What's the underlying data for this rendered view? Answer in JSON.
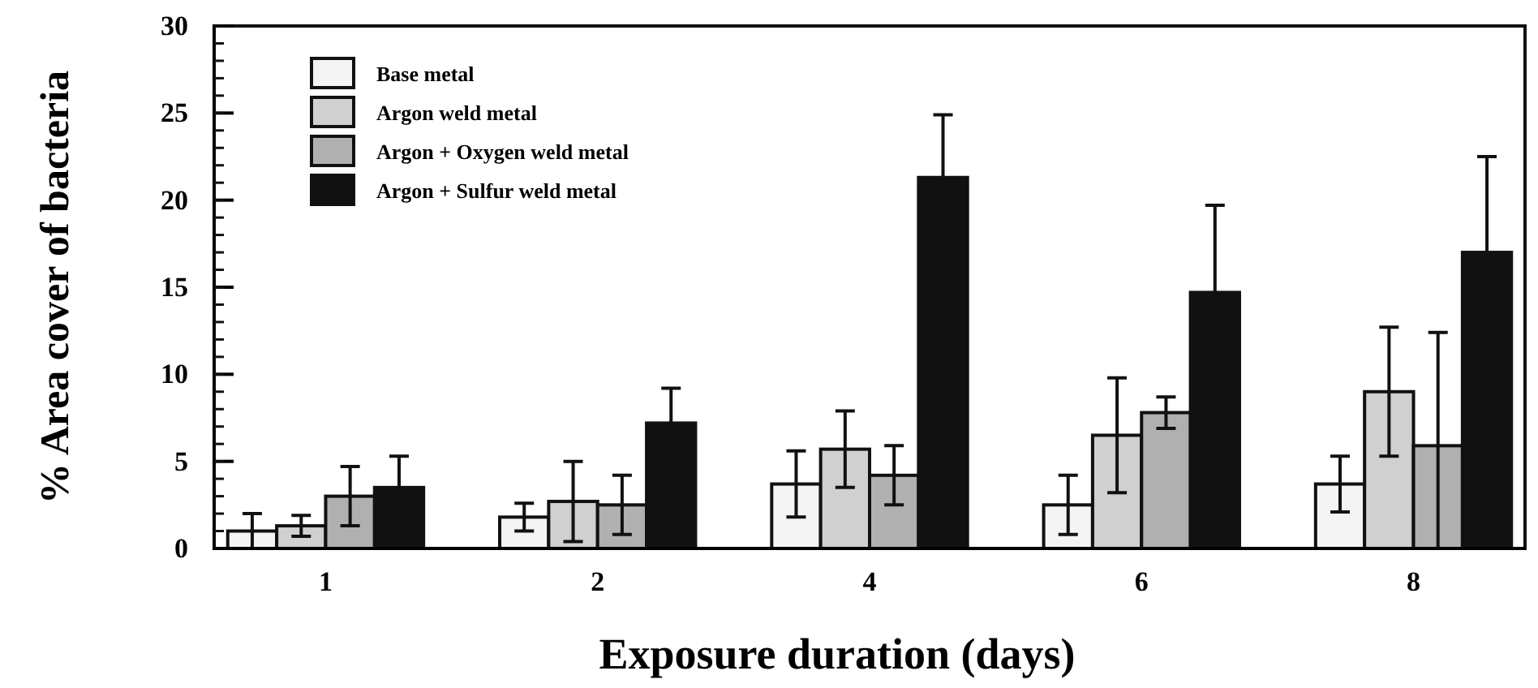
{
  "chart_data": {
    "type": "bar",
    "xlabel": "Exposure duration (days)",
    "ylabel": "% Area cover of bacteria",
    "categories": [
      "1",
      "2",
      "4",
      "6",
      "8"
    ],
    "series": [
      {
        "name": "Base metal",
        "color": "#f4f4f4",
        "values": [
          1.0,
          1.8,
          3.7,
          2.5,
          3.7
        ],
        "errors": [
          1.0,
          0.8,
          1.9,
          1.7,
          1.6
        ]
      },
      {
        "name": "Argon weld metal",
        "color": "#d0d0d0",
        "values": [
          1.3,
          2.7,
          5.7,
          6.5,
          9.0
        ],
        "errors": [
          0.6,
          2.3,
          2.2,
          3.3,
          3.7
        ]
      },
      {
        "name": "Argon + Oxygen weld metal",
        "color": "#b0b0b0",
        "values": [
          3.0,
          2.5,
          4.2,
          7.8,
          5.9
        ],
        "errors": [
          1.7,
          1.7,
          1.7,
          0.9,
          [
            0,
            12.4
          ]
        ]
      },
      {
        "name": "Argon + Sulfur weld metal",
        "color": "#111111",
        "values": [
          3.5,
          7.2,
          21.3,
          14.7,
          17.0
        ],
        "errors": [
          1.8,
          2.0,
          3.6,
          5.0,
          5.5
        ]
      }
    ],
    "ylim": [
      0,
      30
    ],
    "yticks": [
      0,
      5,
      10,
      15,
      20,
      25,
      30
    ],
    "grid": false,
    "legend": "top left"
  }
}
